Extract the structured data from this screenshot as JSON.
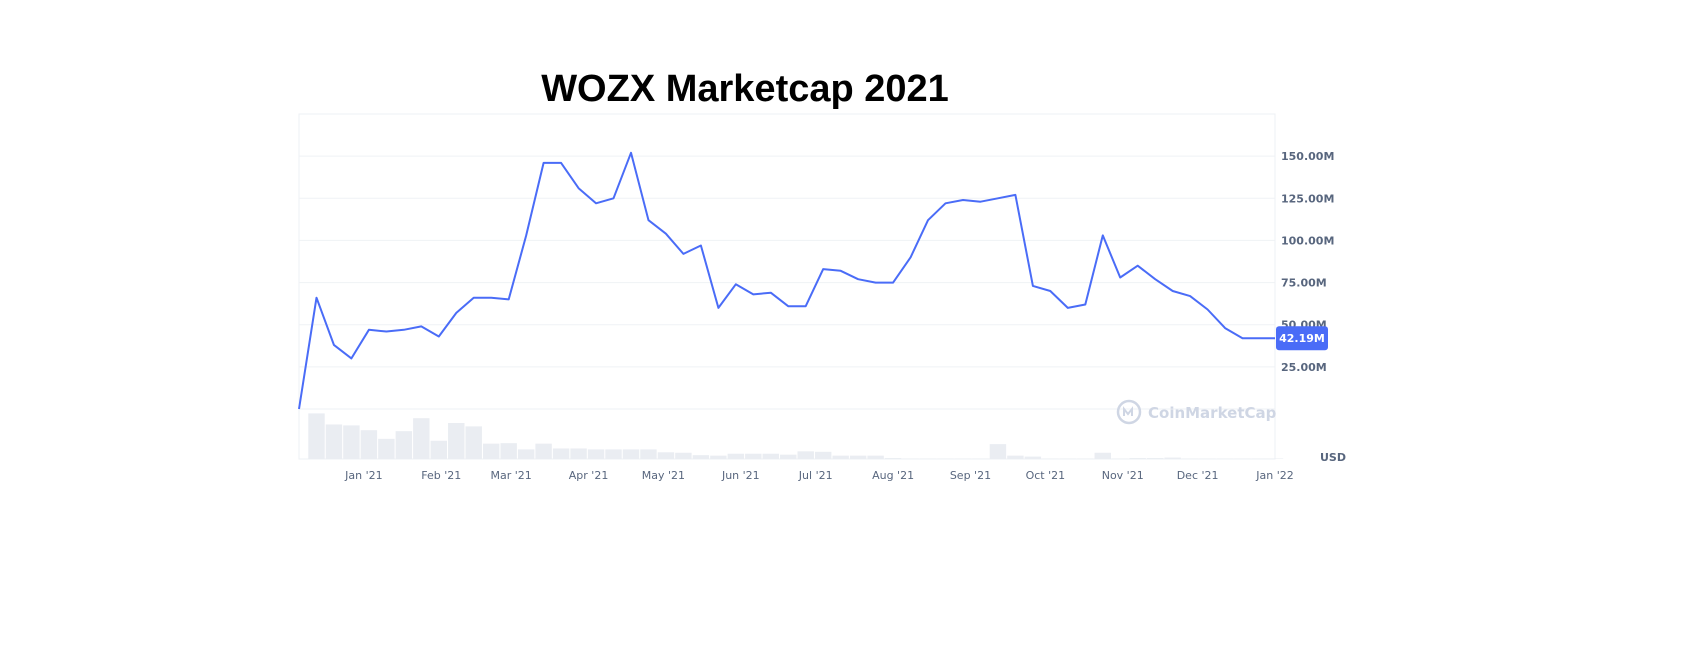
{
  "chart_data": {
    "type": "line",
    "title": "WOZX Marketcap 2021",
    "unit": "USD",
    "y_ticks": [
      "25.00M",
      "50.00M",
      "75.00M",
      "100.00M",
      "125.00M",
      "150.00M"
    ],
    "y_tick_values": [
      25,
      50,
      75,
      100,
      125,
      150
    ],
    "ylim": [
      0,
      175
    ],
    "x_ticks": [
      "Jan '21",
      "Feb '21",
      "Mar '21",
      "Apr '21",
      "May '21",
      "Jun '21",
      "Jul '21",
      "Aug '21",
      "Sep '21",
      "Oct '21",
      "Nov '21",
      "Dec '21",
      "Jan '22"
    ],
    "x_tick_dates": [
      "2021-01-01",
      "2021-02-01",
      "2021-03-01",
      "2021-04-01",
      "2021-05-01",
      "2021-06-01",
      "2021-07-01",
      "2021-08-01",
      "2021-09-01",
      "2021-10-01",
      "2021-11-01",
      "2021-12-01",
      "2022-01-01"
    ],
    "xlim": [
      "2020-12-06",
      "2022-01-01"
    ],
    "grid": true,
    "line_color": "#4a6cf7",
    "current_value_label": "42.19M",
    "series": [
      {
        "x": [
          "2020-12-06",
          "2020-12-13",
          "2020-12-20",
          "2020-12-27",
          "2021-01-03",
          "2021-01-10",
          "2021-01-17",
          "2021-01-24",
          "2021-01-31",
          "2021-02-07",
          "2021-02-14",
          "2021-02-21",
          "2021-02-28",
          "2021-03-07",
          "2021-03-14",
          "2021-03-21",
          "2021-03-28",
          "2021-04-04",
          "2021-04-11",
          "2021-04-18",
          "2021-04-25",
          "2021-05-02",
          "2021-05-09",
          "2021-05-16",
          "2021-05-23",
          "2021-05-30",
          "2021-06-06",
          "2021-06-13",
          "2021-06-20",
          "2021-06-27",
          "2021-07-04",
          "2021-07-11",
          "2021-07-18",
          "2021-07-25",
          "2021-08-01",
          "2021-08-08",
          "2021-08-15",
          "2021-08-22",
          "2021-08-29",
          "2021-09-05",
          "2021-09-12",
          "2021-09-19",
          "2021-09-26",
          "2021-10-03",
          "2021-10-10",
          "2021-10-17",
          "2021-10-24",
          "2021-10-31",
          "2021-11-07",
          "2021-11-14",
          "2021-11-21",
          "2021-11-28",
          "2021-12-05",
          "2021-12-12",
          "2021-12-19",
          "2021-12-26",
          "2022-01-01"
        ],
        "values": [
          0,
          66,
          38,
          30,
          47,
          46,
          47,
          49,
          43,
          57,
          66,
          66,
          65,
          103,
          146,
          146,
          131,
          122,
          125,
          152,
          112,
          104,
          92,
          97,
          60,
          74,
          68,
          69,
          61,
          61,
          83,
          82,
          77,
          75,
          75,
          90,
          112,
          122,
          124,
          123,
          125,
          127,
          73,
          70,
          60,
          62,
          103,
          78,
          85,
          77,
          70,
          67,
          59,
          48,
          42,
          42,
          42
        ]
      }
    ],
    "volume_relative": [
      0.0,
      0.95,
      0.72,
      0.7,
      0.6,
      0.42,
      0.58,
      0.85,
      0.38,
      0.75,
      0.68,
      0.32,
      0.33,
      0.2,
      0.32,
      0.22,
      0.22,
      0.2,
      0.2,
      0.2,
      0.2,
      0.14,
      0.13,
      0.08,
      0.07,
      0.11,
      0.11,
      0.11,
      0.09,
      0.16,
      0.15,
      0.07,
      0.07,
      0.07,
      0.02,
      0.01,
      0.01,
      0.01,
      0.01,
      0.01,
      0.31,
      0.07,
      0.05,
      0.01,
      0.01,
      0.01,
      0.13,
      0.01,
      0.02,
      0.02,
      0.03,
      0.01,
      0.01,
      0.01,
      0.01,
      0.01,
      0.01
    ]
  },
  "watermark": {
    "text": "CoinMarketCap",
    "icon": "coinmarketcap-logo-icon"
  }
}
